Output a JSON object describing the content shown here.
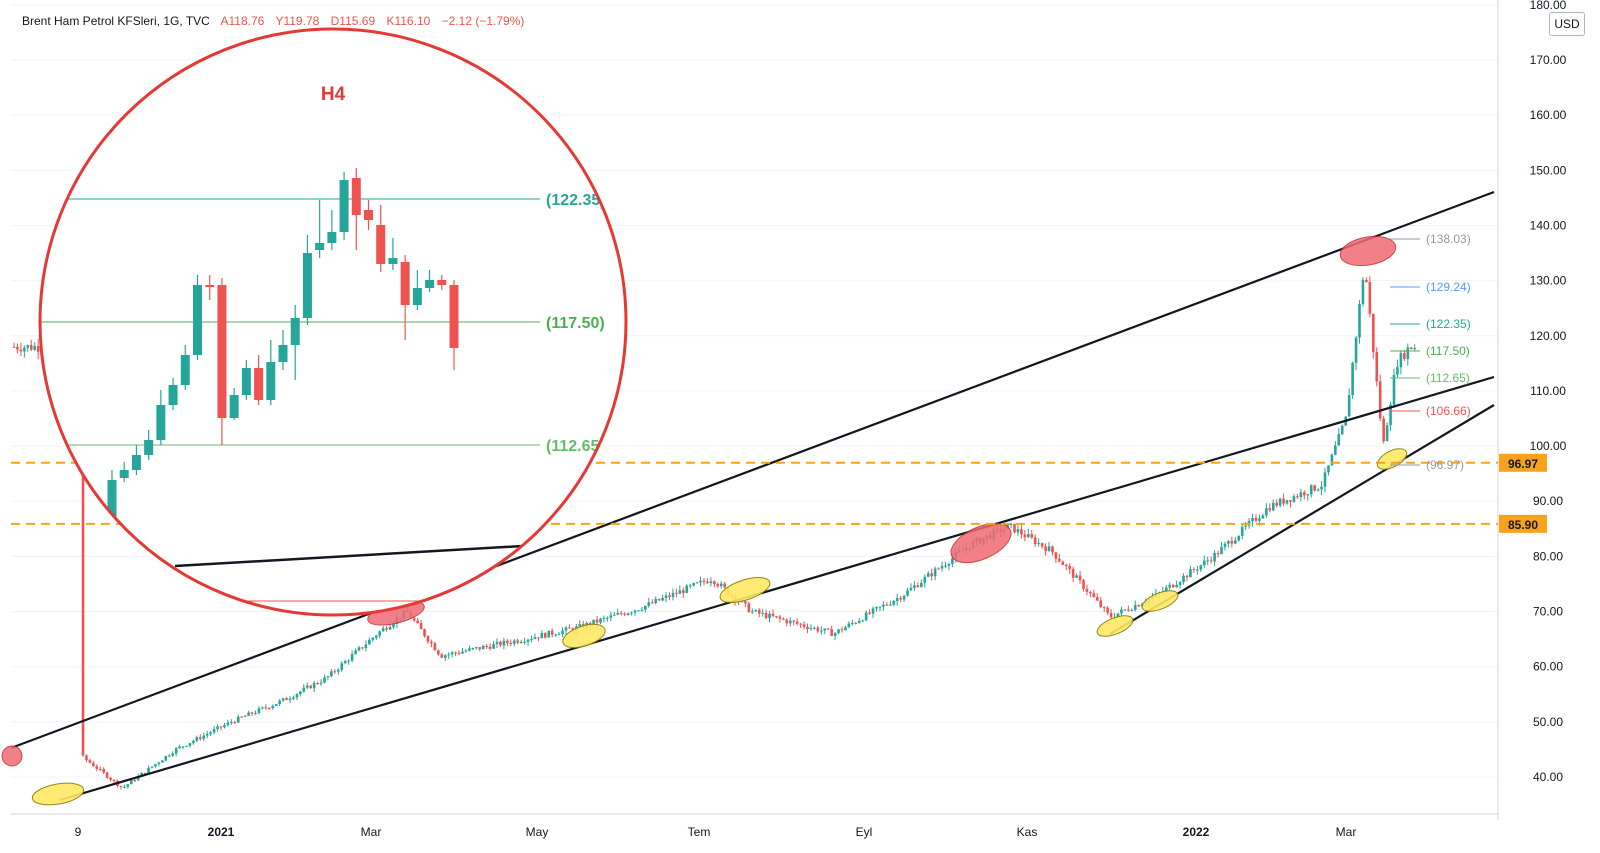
{
  "header": {
    "symbol": "Brent Ham Petrol KFSleri, 1G, TVC",
    "open": "A118.76",
    "high": "Y119.78",
    "low": "D115.69",
    "close": "K116.10",
    "change": "−2.12 (−1.79%)"
  },
  "currency": "USD",
  "colors": {
    "up": "#26a69a",
    "down": "#ef5350",
    "circle": "#e53935",
    "dash": "#f7a21b",
    "label_bg": "#f7a21b"
  },
  "inset": {
    "title": "H4",
    "levels": [
      "(122.35)",
      "(117.50)",
      "(112.65)"
    ]
  },
  "chart_data": {
    "type": "candlestick",
    "title": "Brent Ham Petrol KFSleri, 1G, TVC",
    "y_axis": {
      "range": [
        36,
        180
      ],
      "ticks": [
        "180.00",
        "170.00",
        "160.00",
        "150.00",
        "140.00",
        "130.00",
        "120.00",
        "110.00",
        "100.00",
        "90.00",
        "80.00",
        "70.00",
        "60.00",
        "50.00",
        "40.00"
      ],
      "unit": "USD"
    },
    "x_axis": {
      "ticks": [
        "9",
        "2021",
        "Mar",
        "May",
        "Tem",
        "Eyl",
        "Kas",
        "2022",
        "Mar"
      ]
    },
    "horizontal_levels": [
      {
        "label": "96.97",
        "value": 96.97
      },
      {
        "label": "85.90",
        "value": 85.9
      }
    ],
    "fib_levels": [
      {
        "label": "(138.03)",
        "value": 138.03
      },
      {
        "label": "(129.24)",
        "value": 129.24
      },
      {
        "label": "(122.35)",
        "value": 122.35
      },
      {
        "label": "(117.50)",
        "value": 117.5
      },
      {
        "label": "(112.65)",
        "value": 112.65
      },
      {
        "label": "(106.66)",
        "value": 106.66
      },
      {
        "label": "(96.97)",
        "value": 96.97
      }
    ],
    "path_points": [
      [
        "2020-11-09",
        44
      ],
      [
        "2020-11-25",
        38
      ],
      [
        "2020-12-15",
        45
      ],
      [
        "2021-01-05",
        50
      ],
      [
        "2021-01-25",
        54
      ],
      [
        "2021-02-10",
        58
      ],
      [
        "2021-03-01",
        66
      ],
      [
        "2021-03-12",
        70
      ],
      [
        "2021-03-25",
        62
      ],
      [
        "2021-04-15",
        64
      ],
      [
        "2021-05-15",
        67
      ],
      [
        "2021-06-10",
        71
      ],
      [
        "2021-07-05",
        76
      ],
      [
        "2021-07-20",
        70
      ],
      [
        "2021-08-20",
        66
      ],
      [
        "2021-09-15",
        73
      ],
      [
        "2021-10-10",
        82
      ],
      [
        "2021-10-25",
        85.5
      ],
      [
        "2021-11-10",
        81
      ],
      [
        "2021-11-25",
        73
      ],
      [
        "2021-12-02",
        69
      ],
      [
        "2021-12-20",
        73
      ],
      [
        "2022-01-10",
        80
      ],
      [
        "2022-01-31",
        89
      ],
      [
        "2022-02-20",
        93
      ],
      [
        "2022-03-01",
        105
      ],
      [
        "2022-03-08",
        133
      ],
      [
        "2022-03-15",
        100
      ],
      [
        "2022-03-20",
        115
      ],
      [
        "2022-03-25",
        118
      ]
    ]
  }
}
